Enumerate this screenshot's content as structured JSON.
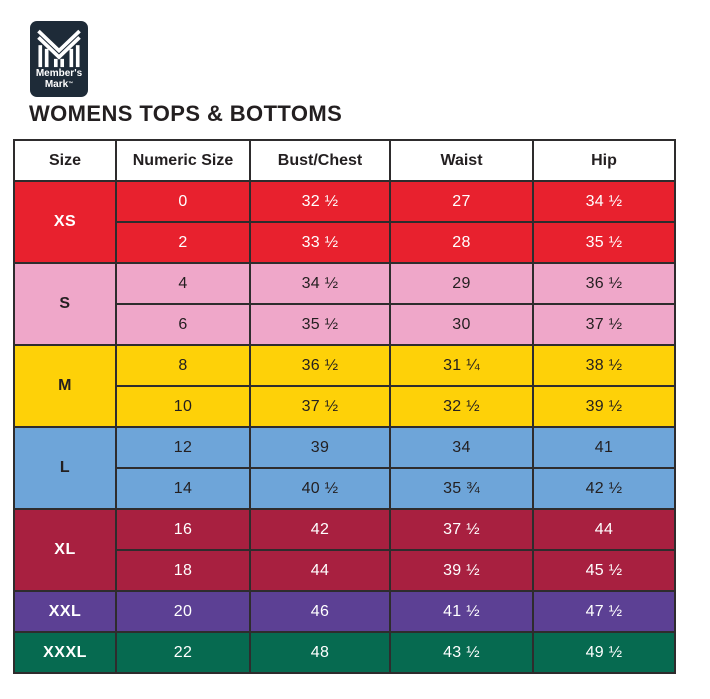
{
  "logo": {
    "brand_line1": "Member's",
    "brand_line2": "Mark",
    "trademark": "™",
    "badge_color": "#1e2b38",
    "mark_color": "#ffffff"
  },
  "chart_data": {
    "type": "table",
    "title": "WOMENS TOPS & BOTTOMS",
    "columns": [
      "Size",
      "Numeric Size",
      "Bust/Chest",
      "Waist",
      "Hip"
    ],
    "groups": [
      {
        "size": "XS",
        "row_color": "#e8212e",
        "text_color": "#ffffff",
        "rows": [
          {
            "numeric_size": "0",
            "bust_chest": "32 ½",
            "waist": "27",
            "hip": "34 ½"
          },
          {
            "numeric_size": "2",
            "bust_chest": "33 ½",
            "waist": "28",
            "hip": "35 ½"
          }
        ]
      },
      {
        "size": "S",
        "row_color": "#efa7c9",
        "text_color": "#231f20",
        "rows": [
          {
            "numeric_size": "4",
            "bust_chest": "34 ½",
            "waist": "29",
            "hip": "36 ½"
          },
          {
            "numeric_size": "6",
            "bust_chest": "35 ½",
            "waist": "30",
            "hip": "37 ½"
          }
        ]
      },
      {
        "size": "M",
        "row_color": "#fed108",
        "text_color": "#231f20",
        "rows": [
          {
            "numeric_size": "8",
            "bust_chest": "36 ½",
            "waist": "31 ¼",
            "hip": "38 ½"
          },
          {
            "numeric_size": "10",
            "bust_chest": "37 ½",
            "waist": "32 ½",
            "hip": "39 ½"
          }
        ]
      },
      {
        "size": "L",
        "row_color": "#6ea5d9",
        "text_color": "#231f20",
        "rows": [
          {
            "numeric_size": "12",
            "bust_chest": "39",
            "waist": "34",
            "hip": "41"
          },
          {
            "numeric_size": "14",
            "bust_chest": "40 ½",
            "waist": "35 ¾",
            "hip": "42 ½"
          }
        ]
      },
      {
        "size": "XL",
        "row_color": "#a82040",
        "text_color": "#ffffff",
        "rows": [
          {
            "numeric_size": "16",
            "bust_chest": "42",
            "waist": "37 ½",
            "hip": "44"
          },
          {
            "numeric_size": "18",
            "bust_chest": "44",
            "waist": "39 ½",
            "hip": "45 ½"
          }
        ]
      },
      {
        "size": "XXL",
        "row_color": "#5c4094",
        "text_color": "#ffffff",
        "rows": [
          {
            "numeric_size": "20",
            "bust_chest": "46",
            "waist": "41 ½",
            "hip": "47 ½"
          }
        ]
      },
      {
        "size": "XXXL",
        "row_color": "#066a50",
        "text_color": "#ffffff",
        "rows": [
          {
            "numeric_size": "22",
            "bust_chest": "48",
            "waist": "43 ½",
            "hip": "49 ½"
          }
        ]
      }
    ]
  }
}
